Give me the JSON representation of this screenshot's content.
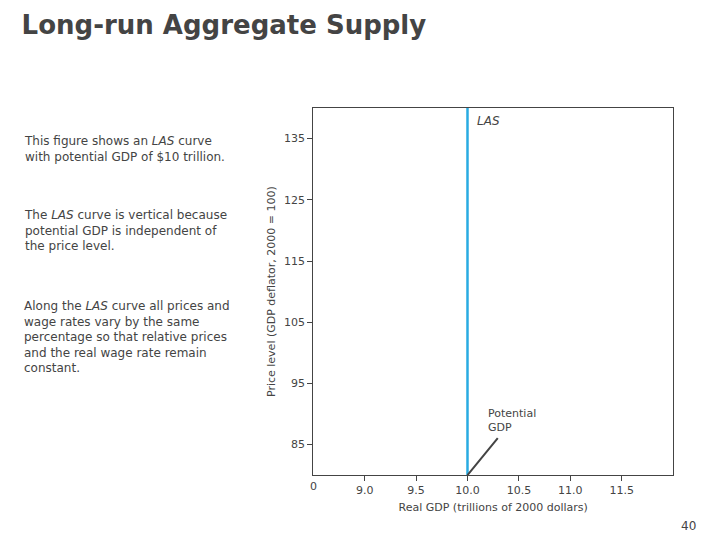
{
  "chart_data": {
    "type": "line",
    "title": "Long-run Aggregate Supply",
    "xlabel": "Real GDP (trillions of 2000 dollars)",
    "ylabel": "Price level (GDP deflator, 2000 = 100)",
    "series": [
      {
        "name": "LAS",
        "color": "#29abe2",
        "x": [
          10.0,
          10.0
        ],
        "values": [
          80,
          140
        ]
      }
    ],
    "xlim": [
      8.5,
      12.0
    ],
    "ylim": [
      80,
      140
    ],
    "xticks": [
      {
        "value": 9.0,
        "label": "9.0"
      },
      9.5,
      {
        "value": 10.0,
        "label": "10.0"
      },
      10.5,
      {
        "value": 11.0,
        "label": "11.0"
      },
      11.5
    ],
    "yticks": [
      85,
      95,
      105,
      115,
      125,
      135
    ],
    "grid": false,
    "annotations": [
      {
        "text": "Potential\nGDP"
      }
    ],
    "origin_label": "0",
    "page_number": "40",
    "text": [
      "This figure shows an LAS curve\nwith potential GDP of $10 trillion.",
      "The LAS curve is vertical because\npotential GDP is independent of\nthe price level.",
      "Along the LAS curve all prices and\nwage rates vary by the same\npercentage so that relative prices\nand the real wage rate remain\nconstant."
    ]
  }
}
